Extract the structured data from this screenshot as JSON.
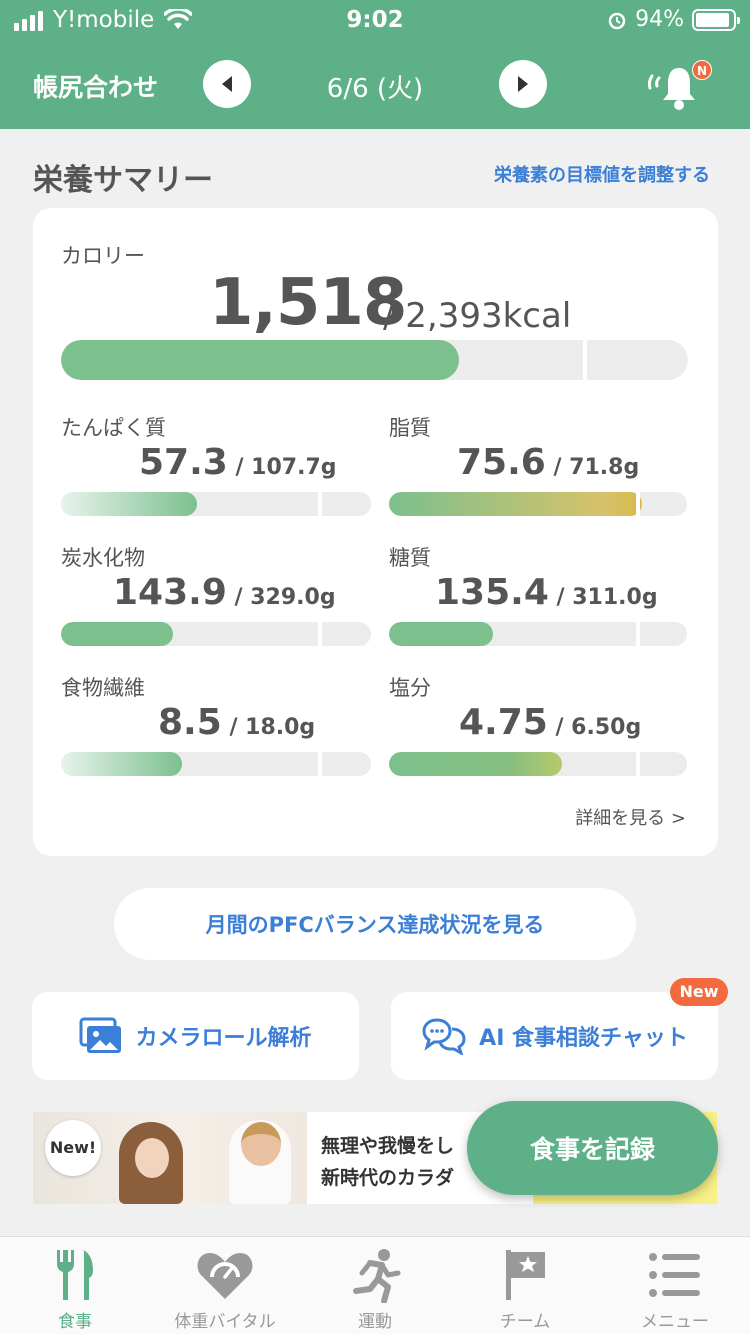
{
  "status_bar": {
    "carrier": "Y!mobile",
    "time": "9:02",
    "battery": "94%"
  },
  "header": {
    "title": "帳尻合わせ",
    "date": "6/6 (火)",
    "notification_badge": "N"
  },
  "summary": {
    "title": "栄養サマリー",
    "adjust_link": "栄養素の目標値を調整する",
    "calorie": {
      "label": "カロリー",
      "value": "1,518",
      "goal": " / 2,393kcal",
      "progress": 0.634
    },
    "nutrients": [
      {
        "label": "たんぱく質",
        "value": "57.3",
        "goal": " / 107.7g",
        "progress": 0.44
      },
      {
        "label": "脂質",
        "value": "75.6",
        "goal": " / 71.8g",
        "progress": 0.85
      },
      {
        "label": "炭水化物",
        "value": "143.9",
        "goal": " / 329.0g",
        "progress": 0.36
      },
      {
        "label": "糖質",
        "value": "135.4",
        "goal": " / 311.0g",
        "progress": 0.35
      },
      {
        "label": "食物繊維",
        "value": "8.5",
        "goal": " / 18.0g",
        "progress": 0.39
      },
      {
        "label": "塩分",
        "value": "4.75",
        "goal": " / 6.50g",
        "progress": 0.58
      }
    ],
    "detail_link": "詳細を見る >"
  },
  "pfc_button": "月間のPFCバランス達成状況を見る",
  "features": {
    "camera": "カメラロール解析",
    "ai_chat": "AI 食事相談チャット",
    "new_badge": "New"
  },
  "banner": {
    "badge": "New!",
    "line1": "無理や我慢をし",
    "line2": "新時代のカラダ"
  },
  "record_button": "食事を記録",
  "tabs": [
    {
      "label": "食事",
      "icon": "fork-knife-icon",
      "active": true
    },
    {
      "label": "体重バイタル",
      "icon": "heart-scale-icon",
      "active": false
    },
    {
      "label": "運動",
      "icon": "running-icon",
      "active": false
    },
    {
      "label": "チーム",
      "icon": "flag-star-icon",
      "active": false
    },
    {
      "label": "メニュー",
      "icon": "menu-list-icon",
      "active": false
    }
  ],
  "colors": {
    "brand_green": "#5db088",
    "bar_green": "#7cc08e",
    "link_blue": "#3c7fd6",
    "badge_orange": "#f26a3d"
  }
}
